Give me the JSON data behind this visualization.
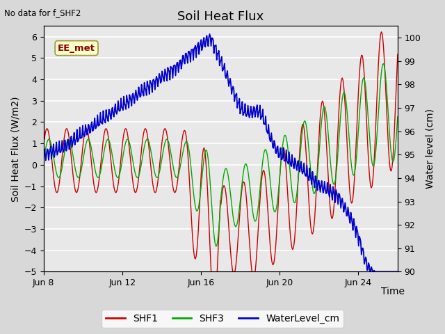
{
  "title": "Soil Heat Flux",
  "top_left_text": "No data for f_SHF2",
  "ylabel_left": "Soil Heat Flux (W/m2)",
  "ylabel_right": "Water level (cm)",
  "xlabel": "Time",
  "ylim_left": [
    -5.0,
    6.5
  ],
  "ylim_right": [
    90.0,
    100.5
  ],
  "yticks_left": [
    -5.0,
    -4.0,
    -3.0,
    -2.0,
    -1.0,
    0.0,
    1.0,
    2.0,
    3.0,
    4.0,
    5.0,
    6.0
  ],
  "yticks_right": [
    90.0,
    91.0,
    92.0,
    93.0,
    94.0,
    95.0,
    96.0,
    97.0,
    98.0,
    99.0,
    100.0
  ],
  "xtick_labels": [
    "Jun 8",
    "Jun 12",
    "Jun 16",
    "Jun 20",
    "Jun 24"
  ],
  "xtick_positions": [
    0,
    4,
    8,
    12,
    16
  ],
  "xlim": [
    0,
    18
  ],
  "box_label": "EE_met",
  "box_color": "#ffffcc",
  "box_border": "#999933",
  "shf1_color": "#cc0000",
  "shf3_color": "#00aa00",
  "water_color": "#0000cc",
  "bg_color": "#d8d8d8",
  "plot_bg_color": "#e8e8e8",
  "grid_color": "#ffffff",
  "legend_labels": [
    "SHF1",
    "SHF3",
    "WaterLevel_cm"
  ],
  "title_fontsize": 13,
  "axis_fontsize": 10,
  "tick_fontsize": 9,
  "legend_fontsize": 10
}
